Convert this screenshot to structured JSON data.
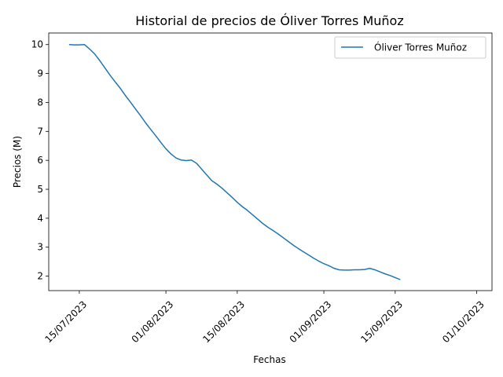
{
  "chart_data": {
    "type": "line",
    "title": "Historial de precios de Óliver Torres Muñoz",
    "xlabel": "Fechas",
    "ylabel": "Precios (M)",
    "legend_position": "top-right",
    "grid": false,
    "color": "#1f77b4",
    "xlim": [
      "2023-07-09",
      "2023-10-04"
    ],
    "ylim": [
      1.5,
      10.4
    ],
    "x_ticks": [
      {
        "date": "2023-07-15",
        "label": "15/07/2023"
      },
      {
        "date": "2023-08-01",
        "label": "01/08/2023"
      },
      {
        "date": "2023-08-15",
        "label": "15/08/2023"
      },
      {
        "date": "2023-09-01",
        "label": "01/09/2023"
      },
      {
        "date": "2023-09-15",
        "label": "15/09/2023"
      },
      {
        "date": "2023-10-01",
        "label": "01/10/2023"
      }
    ],
    "y_ticks": [
      {
        "value": 2,
        "label": "2"
      },
      {
        "value": 3,
        "label": "3"
      },
      {
        "value": 4,
        "label": "4"
      },
      {
        "value": 5,
        "label": "5"
      },
      {
        "value": 6,
        "label": "6"
      },
      {
        "value": 7,
        "label": "7"
      },
      {
        "value": 8,
        "label": "8"
      },
      {
        "value": 9,
        "label": "9"
      },
      {
        "value": 10,
        "label": "10"
      }
    ],
    "series": [
      {
        "name": "Óliver Torres Muñoz",
        "points": [
          [
            "2023-07-13",
            10.0
          ],
          [
            "2023-07-14",
            9.99
          ],
          [
            "2023-07-15",
            9.99
          ],
          [
            "2023-07-16",
            10.0
          ],
          [
            "2023-07-17",
            9.85
          ],
          [
            "2023-07-18",
            9.68
          ],
          [
            "2023-07-19",
            9.45
          ],
          [
            "2023-07-20",
            9.2
          ],
          [
            "2023-07-21",
            8.95
          ],
          [
            "2023-07-22",
            8.72
          ],
          [
            "2023-07-23",
            8.5
          ],
          [
            "2023-07-24",
            8.25
          ],
          [
            "2023-07-25",
            8.02
          ],
          [
            "2023-07-26",
            7.78
          ],
          [
            "2023-07-27",
            7.55
          ],
          [
            "2023-07-28",
            7.3
          ],
          [
            "2023-07-29",
            7.07
          ],
          [
            "2023-07-30",
            6.85
          ],
          [
            "2023-07-31",
            6.62
          ],
          [
            "2023-08-01",
            6.4
          ],
          [
            "2023-08-02",
            6.22
          ],
          [
            "2023-08-03",
            6.08
          ],
          [
            "2023-08-04",
            6.01
          ],
          [
            "2023-08-05",
            5.99
          ],
          [
            "2023-08-06",
            6.01
          ],
          [
            "2023-08-07",
            5.9
          ],
          [
            "2023-08-08",
            5.7
          ],
          [
            "2023-08-09",
            5.5
          ],
          [
            "2023-08-10",
            5.3
          ],
          [
            "2023-08-11",
            5.18
          ],
          [
            "2023-08-12",
            5.04
          ],
          [
            "2023-08-13",
            4.88
          ],
          [
            "2023-08-14",
            4.72
          ],
          [
            "2023-08-15",
            4.55
          ],
          [
            "2023-08-16",
            4.4
          ],
          [
            "2023-08-17",
            4.27
          ],
          [
            "2023-08-18",
            4.12
          ],
          [
            "2023-08-19",
            3.97
          ],
          [
            "2023-08-20",
            3.82
          ],
          [
            "2023-08-21",
            3.69
          ],
          [
            "2023-08-22",
            3.58
          ],
          [
            "2023-08-23",
            3.46
          ],
          [
            "2023-08-24",
            3.33
          ],
          [
            "2023-08-25",
            3.2
          ],
          [
            "2023-08-26",
            3.07
          ],
          [
            "2023-08-27",
            2.95
          ],
          [
            "2023-08-28",
            2.84
          ],
          [
            "2023-08-29",
            2.73
          ],
          [
            "2023-08-30",
            2.62
          ],
          [
            "2023-08-31",
            2.52
          ],
          [
            "2023-09-01",
            2.43
          ],
          [
            "2023-09-02",
            2.36
          ],
          [
            "2023-09-03",
            2.27
          ],
          [
            "2023-09-04",
            2.22
          ],
          [
            "2023-09-05",
            2.21
          ],
          [
            "2023-09-06",
            2.21
          ],
          [
            "2023-09-07",
            2.22
          ],
          [
            "2023-09-08",
            2.22
          ],
          [
            "2023-09-09",
            2.23
          ],
          [
            "2023-09-10",
            2.27
          ],
          [
            "2023-09-11",
            2.22
          ],
          [
            "2023-09-12",
            2.15
          ],
          [
            "2023-09-13",
            2.08
          ],
          [
            "2023-09-14",
            2.02
          ],
          [
            "2023-09-15",
            1.95
          ],
          [
            "2023-09-16",
            1.88
          ]
        ]
      }
    ]
  }
}
